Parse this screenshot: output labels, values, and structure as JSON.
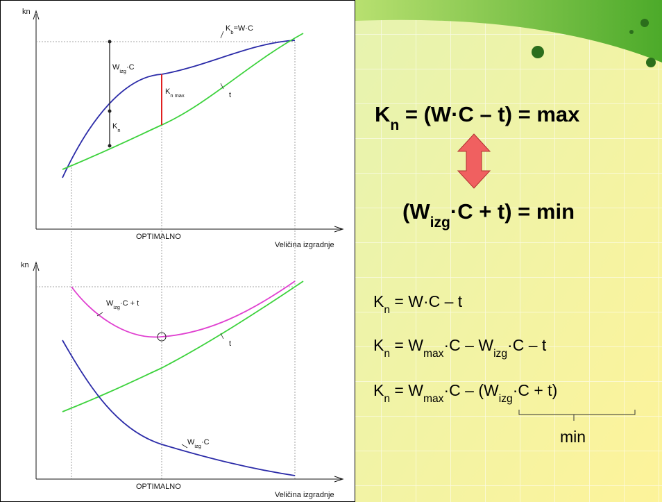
{
  "top_plot": {
    "y_label": "kn",
    "optimum_label": "OPTIMALNO",
    "x_label": "Veličina izgradnje",
    "curve_labels": {
      "revenue": [
        "K",
        "b",
        "=W·C"
      ],
      "cost": "t",
      "water_cost": [
        "W",
        "izg",
        "·C"
      ],
      "profit_max": [
        "K",
        "n max"
      ],
      "profit": [
        "K",
        "n"
      ]
    }
  },
  "bottom_plot": {
    "y_label": "kn",
    "optimum_label": "OPTIMALNO",
    "x_label": "Veličina izgradnje",
    "curve_labels": {
      "total": [
        "W",
        "izg",
        "·C + t"
      ],
      "cost": "t",
      "water_cost": [
        "W",
        "izg",
        "·C"
      ]
    }
  },
  "formulas": {
    "maximum": [
      "K",
      "n",
      " = (W·C – t) = max"
    ],
    "minimum": [
      "(W",
      "izg",
      "·C + t) = min"
    ],
    "derivation": [
      [
        "K",
        "n",
        " = W·C – t"
      ],
      [
        "K",
        "n",
        " = W",
        "max",
        "·C – W",
        "izg",
        "·C – t"
      ],
      [
        "K",
        "n",
        " = W",
        "max",
        "·C – (W",
        "izg",
        "·C + t)"
      ]
    ],
    "brace_label": "min"
  }
}
